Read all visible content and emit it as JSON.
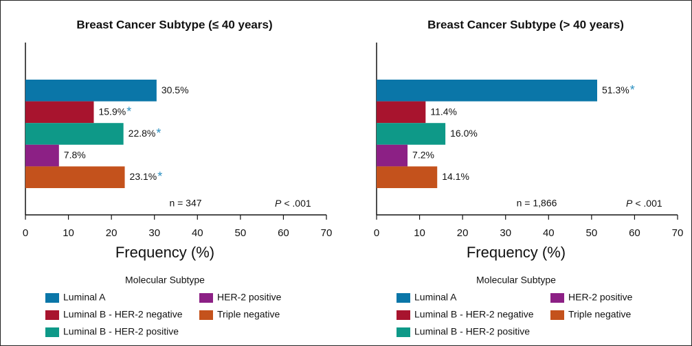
{
  "chart_data": [
    {
      "type": "barh",
      "title": "Breast Cancer Subtype (≤ 40 years)",
      "categories": [
        "Luminal A",
        "Luminal B - HER-2 negative",
        "Luminal B - HER-2 positive",
        "HER-2 positive",
        "Triple negative"
      ],
      "values": [
        30.5,
        15.9,
        22.8,
        7.8,
        23.1
      ],
      "value_labels": [
        "30.5%",
        "15.9%",
        "22.8%",
        "7.8%",
        "23.1%"
      ],
      "significance": [
        null,
        "*",
        "*",
        null,
        "*"
      ],
      "colors": [
        "#0a76a8",
        "#a8142e",
        "#0e9988",
        "#8c2085",
        "#c4521c"
      ],
      "significance_color": "#2a8fc0",
      "xlim": [
        0,
        70
      ],
      "xticks": [
        0,
        10,
        20,
        30,
        40,
        50,
        60,
        70
      ],
      "xlabel": "Frequency (%)",
      "annotation": "n = 347",
      "p_symbol": "P",
      "p_text": "< .001",
      "legend_title": "Molecular Subtype"
    },
    {
      "type": "barh",
      "title": "Breast Cancer Subtype (> 40 years)",
      "categories": [
        "Luminal A",
        "Luminal B - HER-2 negative",
        "Luminal B - HER-2 positive",
        "HER-2 positive",
        "Triple negative"
      ],
      "values": [
        51.3,
        11.4,
        16.0,
        7.2,
        14.1
      ],
      "value_labels": [
        "51.3%",
        "11.4%",
        "16.0%",
        "7.2%",
        "14.1%"
      ],
      "significance": [
        "*",
        null,
        null,
        null,
        null
      ],
      "colors": [
        "#0a76a8",
        "#a8142e",
        "#0e9988",
        "#8c2085",
        "#c4521c"
      ],
      "significance_color": "#2a8fc0",
      "xlim": [
        0,
        70
      ],
      "xticks": [
        0,
        10,
        20,
        30,
        40,
        50,
        60,
        70
      ],
      "xlabel": "Frequency (%)",
      "annotation": "n = 1,866",
      "p_symbol": "P",
      "p_text": "< .001",
      "legend_title": "Molecular Subtype"
    }
  ]
}
